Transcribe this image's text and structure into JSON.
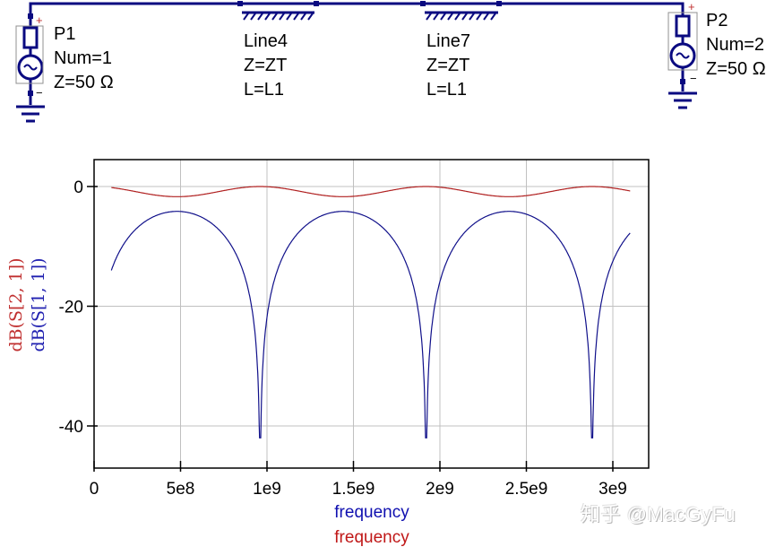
{
  "schematic": {
    "wire_color": "#0a0a80",
    "ports": [
      {
        "name": "P1",
        "num": "Num=1",
        "z": "Z=50 Ω",
        "plus": "+",
        "minus": "−"
      },
      {
        "name": "P2",
        "num": "Num=2",
        "z": "Z=50 Ω",
        "plus": "+",
        "minus": "−"
      }
    ],
    "lines": [
      {
        "name": "Line4",
        "z": "Z=ZT",
        "l": "L=L1"
      },
      {
        "name": "Line7",
        "z": "Z=ZT",
        "l": "L=L1"
      }
    ]
  },
  "plot": {
    "ylabel_s21": "dB(S[2, 1])",
    "ylabel_s11": "dB(S[1, 1])",
    "xlabel_blue": "frequency",
    "xlabel_red": "frequency",
    "y_ticks": [
      "0",
      "-20",
      "-40"
    ],
    "x_ticks": [
      "0",
      "5e8",
      "1e9",
      "1.5e9",
      "2e9",
      "2.5e9",
      "3e9"
    ]
  },
  "chart_data": {
    "type": "line",
    "title": "",
    "xlabel": "frequency",
    "ylabel": "dB(S[2,1]), dB(S[1,1])",
    "xlim": [
      0,
      3100000000.0
    ],
    "ylim": [
      -47,
      4.5
    ],
    "grid": true,
    "x_ticks": [
      0,
      500000000.0,
      1000000000.0,
      1500000000.0,
      2000000000.0,
      2500000000.0,
      3000000000.0
    ],
    "y_ticks": [
      0,
      -20,
      -40
    ],
    "series": [
      {
        "name": "dB(S[2,1])",
        "color": "#b02020",
        "x": [
          100000000.0,
          250000000.0,
          500000000.0,
          750000000.0,
          960000000.0,
          1200000000.0,
          1450000000.0,
          1700000000.0,
          1920000000.0,
          2150000000.0,
          2400000000.0,
          2650000000.0,
          2880000000.0,
          3100000000.0
        ],
        "y": [
          -0.1,
          -0.9,
          -1.7,
          -0.9,
          0.0,
          -0.9,
          -1.7,
          -0.9,
          0.0,
          -0.9,
          -1.7,
          -0.9,
          0.0,
          -0.8
        ]
      },
      {
        "name": "dB(S[1,1])",
        "color": "#10108a",
        "x": [
          100000000.0,
          200000000.0,
          300000000.0,
          400000000.0,
          500000000.0,
          600000000.0,
          700000000.0,
          800000000.0,
          900000000.0,
          960000000.0,
          1050000000.0,
          1200000000.0,
          1300000000.0,
          1450000000.0,
          1600000000.0,
          1700000000.0,
          1800000000.0,
          1900000000.0,
          1920000000.0,
          2000000000.0,
          2150000000.0,
          2300000000.0,
          2400000000.0,
          2550000000.0,
          2700000000.0,
          2850000000.0,
          2880000000.0,
          2950000000.0,
          3100000000.0
        ],
        "y": [
          -12.5,
          -7.5,
          -5.2,
          -4.3,
          -4.2,
          -4.6,
          -6.2,
          -9.5,
          -18,
          -42,
          -16,
          -7.5,
          -5.5,
          -4.2,
          -4.8,
          -6.0,
          -9.5,
          -20,
          -41,
          -15,
          -7.5,
          -5.2,
          -4.2,
          -4.6,
          -6.8,
          -16,
          -42,
          -16,
          -7.0
        ]
      }
    ]
  },
  "watermark": "知乎 @MacGyFu"
}
